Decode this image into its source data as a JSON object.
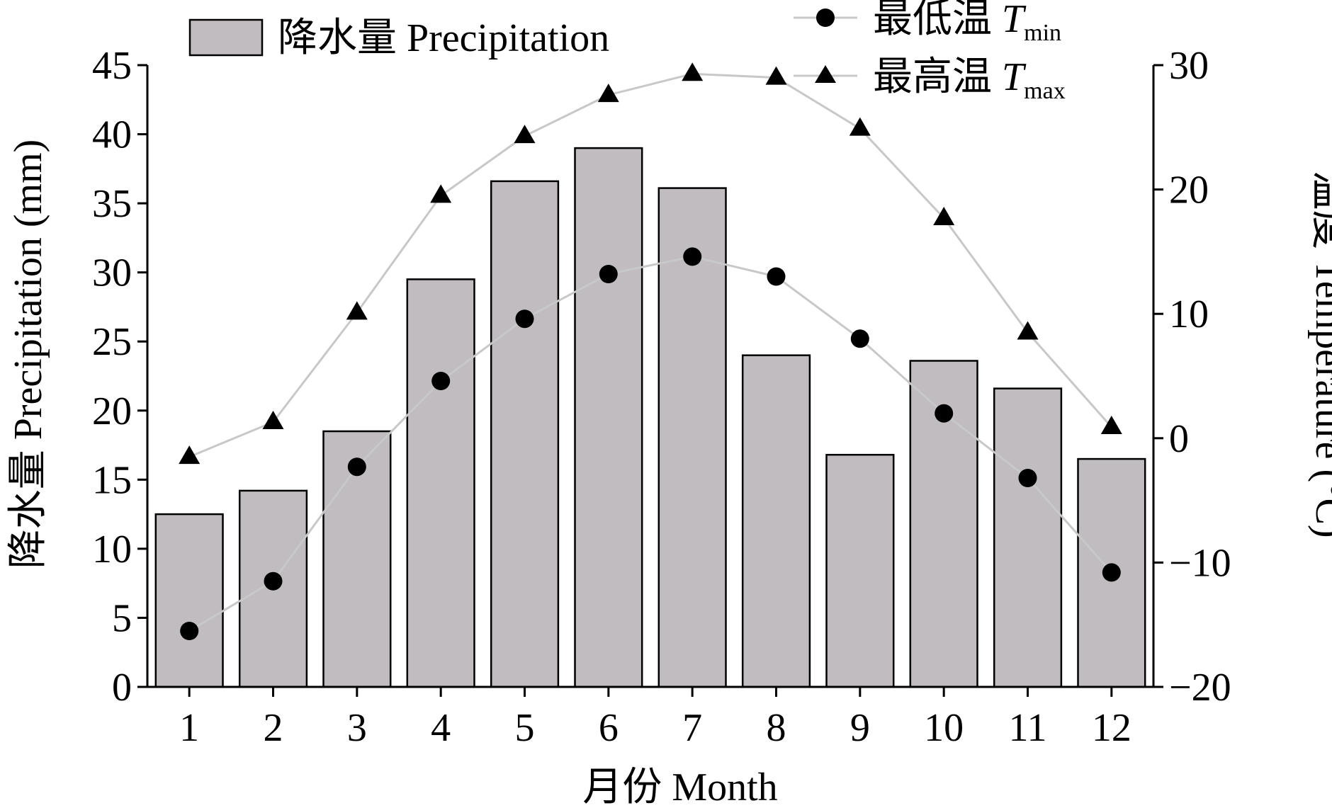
{
  "chart_data": {
    "type": "bar",
    "categories": [
      "1",
      "2",
      "3",
      "4",
      "5",
      "6",
      "7",
      "8",
      "9",
      "10",
      "11",
      "12"
    ],
    "series": [
      {
        "name": "降水量 Precipitation",
        "kind": "bar",
        "axis": "left",
        "values": [
          12.5,
          14.2,
          18.5,
          29.5,
          36.6,
          39.0,
          36.1,
          24.0,
          16.8,
          23.6,
          21.6,
          16.5
        ],
        "color": "#c0bcc0"
      },
      {
        "name": "最低温 Tmin",
        "kind": "line",
        "marker": "circle",
        "axis": "right",
        "values": [
          -15.5,
          -11.5,
          -2.3,
          4.6,
          9.6,
          13.2,
          14.6,
          13.0,
          8.0,
          2.0,
          -3.2,
          -10.8
        ],
        "color": "#c8c8c8"
      },
      {
        "name": "最高温 Tmax",
        "kind": "line",
        "marker": "triangle",
        "axis": "right",
        "values": [
          -1.5,
          1.3,
          10.1,
          19.5,
          24.3,
          27.6,
          29.3,
          29.0,
          24.9,
          17.7,
          8.5,
          0.9
        ],
        "color": "#c8c8c8"
      }
    ],
    "xlabel": "月份 Month",
    "ylabel": "降水量 Precipitation (mm)",
    "ylabel_right": "温度 Temperature (°C)",
    "ylim": [
      0,
      45
    ],
    "ylim_right": [
      -20,
      30
    ],
    "yticks": [
      0,
      5,
      10,
      15,
      20,
      25,
      30,
      35,
      40,
      45
    ],
    "yticks_right": [
      -20,
      -10,
      0,
      10,
      20,
      30
    ],
    "ytick_labels_right": [
      "−20",
      "−10",
      "0",
      "10",
      "20",
      "30"
    ],
    "grid": false,
    "legend": {
      "bar": {
        "text": "降水量 Precipitation"
      },
      "tmin": {
        "prefix": "最低温 ",
        "symbol": "T",
        "sub": "min"
      },
      "tmax": {
        "prefix": "最高温 ",
        "symbol": "T",
        "sub": "max"
      }
    },
    "colors": {
      "bar_fill": "#c0bcc0",
      "line": "#c8c8c8",
      "marker": "#000000"
    }
  }
}
